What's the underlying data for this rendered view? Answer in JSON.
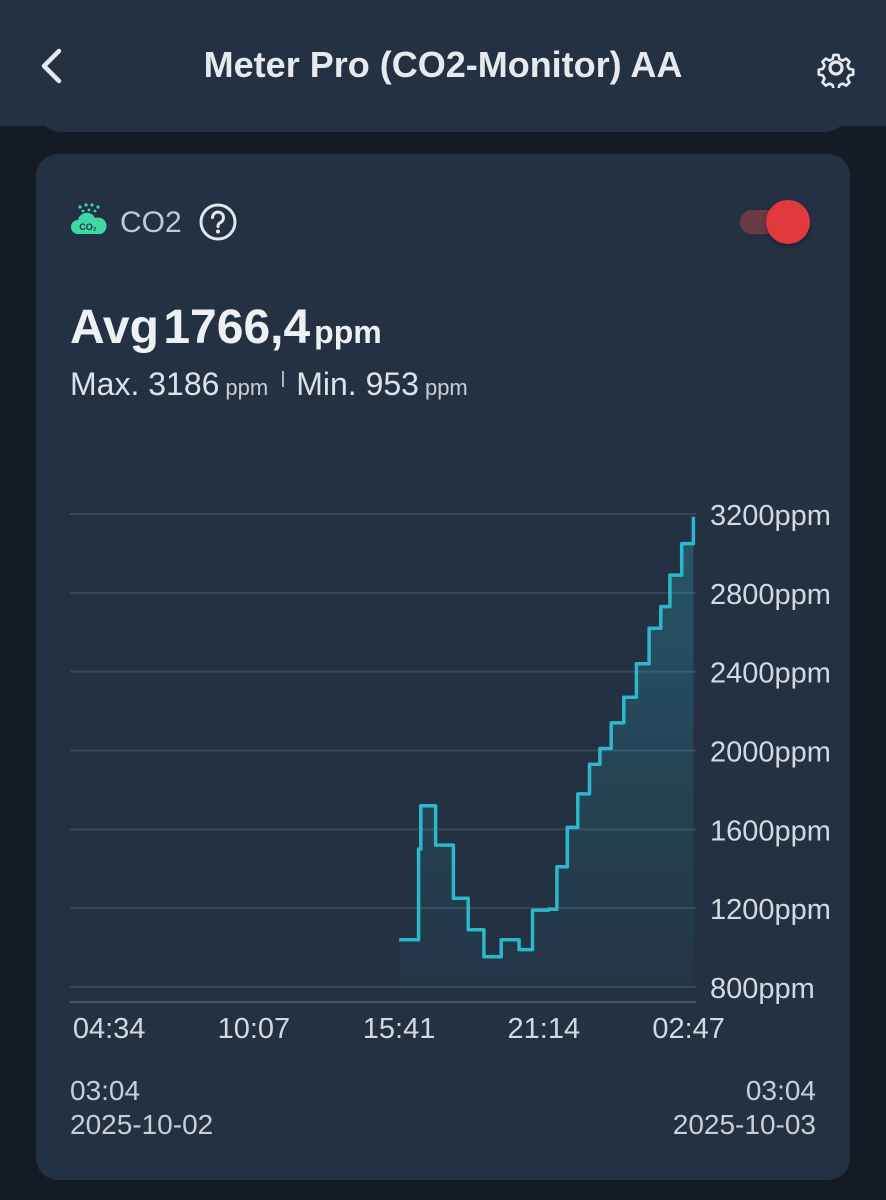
{
  "header": {
    "title": "Meter Pro (CO2-Monitor) AA",
    "back_icon": "chevron-left-icon",
    "settings_icon": "gear-icon"
  },
  "card": {
    "metric_label": "CO2",
    "metric_icon": "co2-cloud-icon",
    "help_icon": "question-circle-icon",
    "toggle_on": true,
    "avg_label": "Avg",
    "avg_value": "1766,4",
    "avg_unit": "ppm",
    "max_label": "Max.",
    "max_value": "3186",
    "max_unit": "ppm",
    "min_label": "Min.",
    "min_value": "953",
    "min_unit": "ppm",
    "range_start_time": "03:04",
    "range_start_date": "2025-10-02",
    "range_end_time": "03:04",
    "range_end_date": "2025-10-03"
  },
  "colors": {
    "background": "#141b24",
    "card": "#243142",
    "line": "#2bb8cc",
    "toggle_knob": "#e03a3f",
    "toggle_track": "#6a3b45",
    "co2_icon": "#3ed8a6"
  },
  "chart_data": {
    "type": "area",
    "y_unit": "ppm",
    "ylim": [
      800,
      3200
    ],
    "y_ticks": [
      800,
      1200,
      1600,
      2000,
      2400,
      2800,
      3200
    ],
    "y_tick_labels": [
      "800ppm",
      "1200ppm",
      "1600ppm",
      "2000ppm",
      "2400ppm",
      "2800ppm",
      "3200ppm"
    ],
    "x_ticks": [
      "04:34",
      "10:07",
      "15:41",
      "21:14",
      "02:47"
    ],
    "x_range": [
      "03:04",
      "03:04"
    ],
    "grid": true,
    "legend": "none",
    "series": [
      {
        "x": [
          "15:41",
          "16:16",
          "16:26",
          "16:31",
          "16:36",
          "17:05",
          "17:46",
          "18:20",
          "18:56",
          "19:36",
          "20:17",
          "20:48",
          "21:25",
          "21:44",
          "22:08",
          "22:32",
          "22:59",
          "23:23",
          "23:49",
          "00:18",
          "00:47",
          "01:16",
          "01:43",
          "02:04",
          "02:31",
          "02:58"
        ],
        "values": [
          1040,
          1040,
          1500,
          1720,
          1720,
          1520,
          1250,
          1090,
          953,
          1040,
          990,
          1190,
          1195,
          1410,
          1610,
          1780,
          1930,
          2010,
          2140,
          2270,
          2440,
          2620,
          2730,
          2890,
          3050,
          3186
        ]
      }
    ]
  }
}
